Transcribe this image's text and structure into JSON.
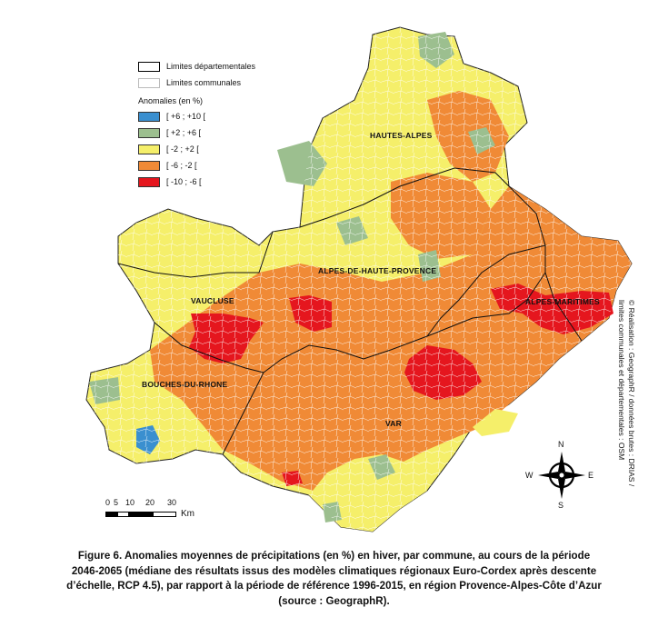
{
  "legend": {
    "limits_departmental": "Limites départementales",
    "limits_communal": "Limites communales",
    "title": "Anomalies (en %)",
    "classes": [
      {
        "label": "[ +6 ; +10 [",
        "color": "#3a8fcf"
      },
      {
        "label": "[ +2 ; +6 [",
        "color": "#9cbf8f"
      },
      {
        "label": "[ -2 ; +2 [",
        "color": "#f5ef6a"
      },
      {
        "label": "[ -6 ; -2 [",
        "color": "#f08a36"
      },
      {
        "label": "[ -10 ; -6 [",
        "color": "#e5161e"
      }
    ]
  },
  "departments": {
    "hautes_alpes": "HAUTES-ALPES",
    "alpes_de_haute_provence": "ALPES-DE-HAUTE-PROVENCE",
    "alpes_maritimes": "ALPES-MARITIMES",
    "vaucluse": "VAUCLUSE",
    "bouches_du_rhone": "BOUCHES-DU-RHONE",
    "var": "VAR"
  },
  "scale": {
    "ticks": [
      "0",
      "5",
      "10",
      "20",
      "30"
    ],
    "unit": "Km"
  },
  "compass": {
    "n": "N",
    "s": "S",
    "e": "E",
    "w": "W"
  },
  "credit": {
    "line1": "© Réalisation : GeographR / données brutes : DRIAS /",
    "line2": "limites communales et départementales : OSM"
  },
  "caption": {
    "line1": "Figure 6. Anomalies moyennes de précipitations (en %) en hiver, par commune, au cours de la période",
    "line2": "2046-2065 (médiane des résultats issus des modèles climatiques régionaux Euro-Cordex après descente",
    "line3": "d’échelle, RCP 4.5), par rapport à la période de référence 1996-2015, en région Provence-Alpes-Côte d’Azur",
    "line4": "(source : GeographR)."
  }
}
